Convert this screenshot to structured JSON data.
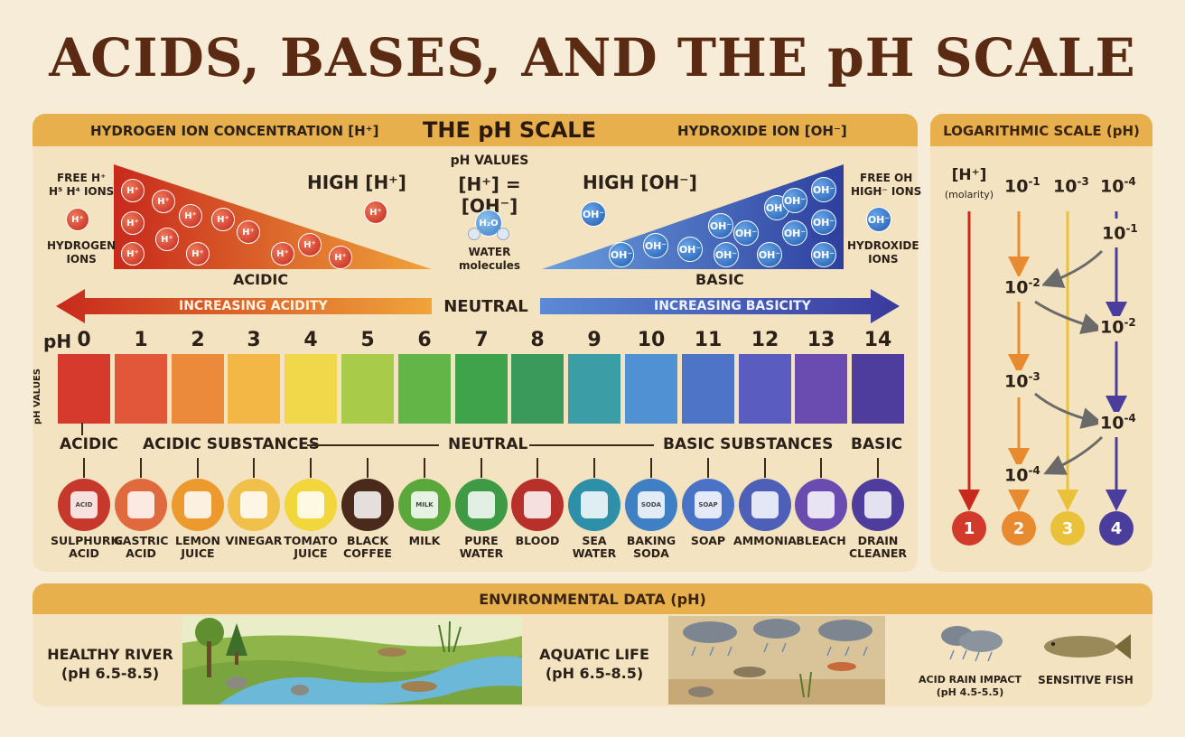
{
  "title": "ACIDS, BASES, AND THE pH SCALE",
  "header": {
    "left": "HYDROGEN ION CONCENTRATION [H⁺]",
    "center": "THE pH SCALE",
    "right": "HYDROXIDE ION [OH⁻]",
    "log": "LOGARITHMIC SCALE (pH)"
  },
  "ions": {
    "free_h": "FREE H⁺\nH⁵ H⁴ IONS",
    "hydrogen_ions": "HYDROGEN\nIONS",
    "high_h": "HIGH [H⁺]",
    "ph_values": "pH VALUES",
    "equation": "[H⁺] = [OH⁻]",
    "water": "WATER\nmolecules",
    "h2o": "H₂O",
    "high_oh": "HIGH [OH⁻]",
    "free_oh": "FREE OH\nHIGH⁻ IONS",
    "hydroxide_ions": "HYDROXIDE\nIONS",
    "h_symbol": "H⁺",
    "oh_symbol": "OH⁻"
  },
  "labels": {
    "acidic": "ACIDIC",
    "basic": "BASIC",
    "increasing_acidity": "INCREASING ACIDITY",
    "increasing_basicity": "INCREASING BASICITY",
    "neutral": "NEUTRAL",
    "ph": "pH",
    "ph_values_vertical": "pH VALUES"
  },
  "scale": [
    {
      "ph": "0",
      "color": "#d63a2c"
    },
    {
      "ph": "1",
      "color": "#e2573a"
    },
    {
      "ph": "2",
      "color": "#ea8a3a"
    },
    {
      "ph": "3",
      "color": "#f2b745"
    },
    {
      "ph": "4",
      "color": "#f1d84a"
    },
    {
      "ph": "5",
      "color": "#a9cb4a"
    },
    {
      "ph": "6",
      "color": "#62b546"
    },
    {
      "ph": "7",
      "color": "#3ea34a"
    },
    {
      "ph": "8",
      "color": "#3a9a5c"
    },
    {
      "ph": "9",
      "color": "#3b9ea6"
    },
    {
      "ph": "10",
      "color": "#4f91d2"
    },
    {
      "ph": "11",
      "color": "#4d74c7"
    },
    {
      "ph": "12",
      "color": "#5a5cc0"
    },
    {
      "ph": "13",
      "color": "#6a4bb0"
    },
    {
      "ph": "14",
      "color": "#4e3d9c"
    }
  ],
  "categories": {
    "acidic": "ACIDIC",
    "acidic_substances": "ACIDIC SUBSTANCES",
    "neutral": "NEUTRAL",
    "basic_substances": "BASIC SUBSTANCES",
    "basic": "BASIC"
  },
  "substances": [
    {
      "label": "SULPHURIC\nACID",
      "color": "#c7382c",
      "icon": "acid-bottle-icon",
      "glyph": "ACID"
    },
    {
      "label": "GASTRIC\nACID",
      "color": "#e06a3e",
      "icon": "stomach-icon",
      "glyph": ""
    },
    {
      "label": "LEMON\nJUICE",
      "color": "#ec9a2e",
      "icon": "lemon-icon",
      "glyph": ""
    },
    {
      "label": "VINEGAR",
      "color": "#f0c04a",
      "icon": "vinegar-bottle-icon",
      "glyph": ""
    },
    {
      "label": "TOMATO\nJUICE",
      "color": "#f1d63c",
      "icon": "tomato-icon",
      "glyph": ""
    },
    {
      "label": "BLACK\nCOFFEE",
      "color": "#4a2a1a",
      "icon": "coffee-cup-icon",
      "glyph": ""
    },
    {
      "label": "MILK",
      "color": "#5aa83c",
      "icon": "milk-bottle-icon",
      "glyph": "MILK"
    },
    {
      "label": "PURE\nWATER",
      "color": "#3f9a46",
      "icon": "water-drop-icon",
      "glyph": ""
    },
    {
      "label": "BLOOD",
      "color": "#b8302a",
      "icon": "blood-tube-icon",
      "glyph": ""
    },
    {
      "label": "SEA\nWATER",
      "color": "#2d8fa8",
      "icon": "wave-icon",
      "glyph": ""
    },
    {
      "label": "BAKING\nSODA",
      "color": "#3f7fc4",
      "icon": "soda-box-icon",
      "glyph": "SODA"
    },
    {
      "label": "SOAP",
      "color": "#4a73c8",
      "icon": "soap-icon",
      "glyph": "SOAP"
    },
    {
      "label": "AMMONIA",
      "color": "#4e5fb8",
      "icon": "flask-icon",
      "glyph": ""
    },
    {
      "label": "BLEACH",
      "color": "#6a4bb0",
      "icon": "bleach-jug-icon",
      "glyph": ""
    },
    {
      "label": "DRAIN\nCLEANER",
      "color": "#4e3d9c",
      "icon": "drain-cleaner-icon",
      "glyph": ""
    }
  ],
  "log": {
    "h_label": "[H⁺]",
    "molarity": "(molarity)",
    "top": [
      "10",
      "10",
      "10"
    ],
    "top_exp": [
      "-1",
      "-3",
      "-4"
    ],
    "col1": {
      "base": "10",
      "exp": [
        "-2",
        "-3",
        "-4"
      ]
    },
    "col2": {
      "base": "10",
      "exp": [
        "-1",
        "-2",
        "-4"
      ]
    },
    "circles": [
      {
        "n": "1",
        "color": "#d23a2c"
      },
      {
        "n": "2",
        "color": "#e88a30"
      },
      {
        "n": "3",
        "color": "#e9c23a"
      },
      {
        "n": "4",
        "color": "#4a3d9c"
      }
    ]
  },
  "environment": {
    "header": "ENVIRONMENTAL DATA (pH)",
    "healthy_river": "HEALTHY RIVER\n(pH 6.5-8.5)",
    "aquatic_life": "AQUATIC LIFE\n(pH 6.5-8.5)",
    "acid_rain": "ACID RAIN IMPACT\n(pH 4.5-5.5)",
    "sensitive_fish": "SENSITIVE FISH"
  }
}
